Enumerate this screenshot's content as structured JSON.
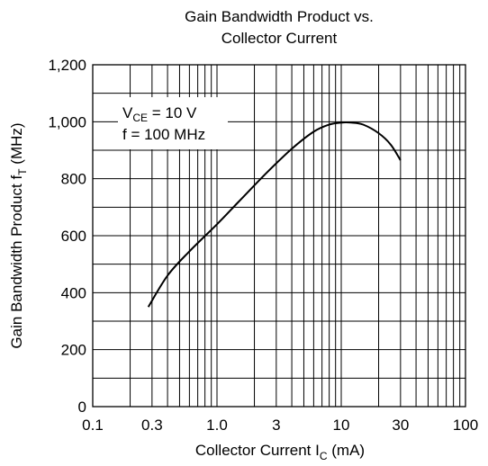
{
  "chart_data": {
    "type": "line",
    "title": [
      "Gain Bandwidth Product vs.",
      "Collector Current"
    ],
    "xlabel": {
      "main": "Collector Current  I",
      "sub": "C",
      "unit": "(mA)"
    },
    "ylabel": {
      "main": "Gain Bandwidth Product  f",
      "sub": "T",
      "unit": "(MHz)"
    },
    "x_scale": "log",
    "xlim": [
      0.1,
      100
    ],
    "ylim": [
      0,
      1200
    ],
    "x_ticks": [
      {
        "value": 0.1,
        "label": "0.1"
      },
      {
        "value": 0.3,
        "label": "0.3"
      },
      {
        "value": 1,
        "label": "1.0"
      },
      {
        "value": 3,
        "label": "3"
      },
      {
        "value": 10,
        "label": "10"
      },
      {
        "value": 30,
        "label": "30"
      },
      {
        "value": 100,
        "label": "100"
      }
    ],
    "y_ticks": [
      {
        "value": 0,
        "label": "0"
      },
      {
        "value": 200,
        "label": "200"
      },
      {
        "value": 400,
        "label": "400"
      },
      {
        "value": 600,
        "label": "600"
      },
      {
        "value": 800,
        "label": "800"
      },
      {
        "value": 1000,
        "label": "1,000"
      },
      {
        "value": 1200,
        "label": "1,200"
      }
    ],
    "grid": true,
    "conditions": [
      {
        "main": "V",
        "sub": "CE",
        "rest": " = 10 V"
      },
      {
        "main": "f = 100 MHz",
        "sub": "",
        "rest": ""
      }
    ],
    "series": [
      {
        "x": [
          0.28,
          0.4,
          0.6,
          1.0,
          1.5,
          2.5,
          4,
          6,
          8,
          10,
          12,
          15,
          20,
          25,
          30
        ],
        "y": [
          350,
          460,
          545,
          640,
          720,
          820,
          905,
          965,
          990,
          997,
          997,
          990,
          960,
          920,
          865
        ]
      }
    ]
  }
}
